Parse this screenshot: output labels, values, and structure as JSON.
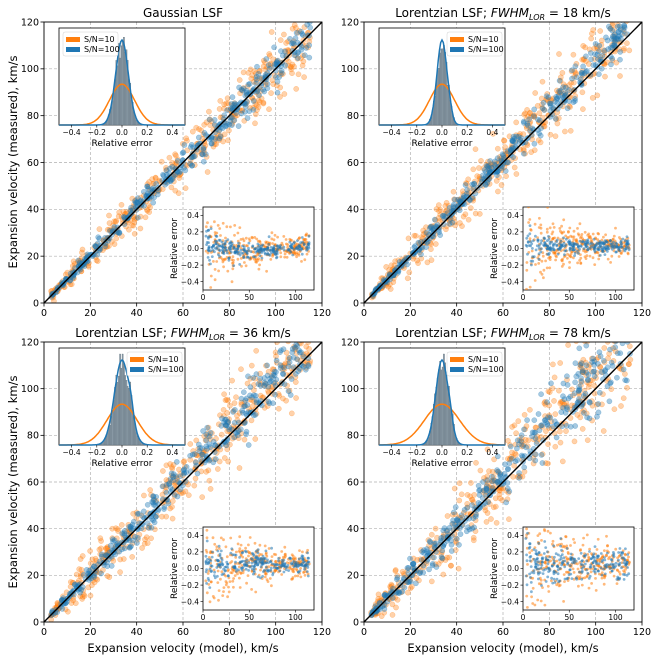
{
  "figure": {
    "xlabel": "Expansion velocity (model), km/s",
    "ylabel": "Expansion velocity (measured), km/s"
  },
  "colors": {
    "sn10": "#ff7f0e",
    "sn100": "#1f77b4",
    "identity": "#000000",
    "grid": "#b0b0b0"
  },
  "chart_data": [
    {
      "type": "scatter",
      "title": "Gaussian LSF",
      "title_sub": "",
      "xlim": [
        0,
        120
      ],
      "ylim": [
        0,
        120
      ],
      "xticks": [
        0,
        20,
        40,
        60,
        80,
        100,
        120
      ],
      "yticks": [
        0,
        20,
        40,
        60,
        80,
        100,
        120
      ],
      "grid": true,
      "identity_line": true,
      "series": [
        {
          "name": "S/N=10",
          "spread_low": 0.2,
          "spread_high": 0.06,
          "bias": 0.0
        },
        {
          "name": "S/N=100",
          "spread_low": 0.06,
          "spread_high": 0.04,
          "bias": 0.0
        }
      ],
      "hist_inset": {
        "xlabel": "Relative error",
        "xticks": [
          -0.4,
          -0.2,
          0.0,
          0.2,
          0.4
        ],
        "xlim": [
          -0.5,
          0.5
        ],
        "legend": [
          "S/N=10",
          "S/N=100"
        ],
        "legend_loc": "upper-left",
        "sigma": [
          0.1,
          0.05
        ]
      },
      "error_inset": {
        "ylabel": "Relative error",
        "xticks": [
          0,
          50,
          100
        ],
        "yticks": [
          -0.4,
          -0.2,
          0.0,
          0.2,
          0.4
        ],
        "ylim": [
          -0.5,
          0.5
        ],
        "xlim": [
          0,
          120
        ]
      }
    },
    {
      "type": "scatter",
      "title": "Lorentzian LSF; ",
      "title_sub": "FWHM_LOR = 18 km/s",
      "xlim": [
        0,
        120
      ],
      "ylim": [
        0,
        120
      ],
      "xticks": [
        0,
        20,
        40,
        60,
        80,
        100,
        120
      ],
      "yticks": [
        0,
        20,
        40,
        60,
        80,
        100,
        120
      ],
      "grid": true,
      "identity_line": true,
      "series": [
        {
          "name": "S/N=10",
          "spread_low": 0.25,
          "spread_high": 0.07,
          "bias": 0.03
        },
        {
          "name": "S/N=100",
          "spread_low": 0.06,
          "spread_high": 0.04,
          "bias": 0.03
        }
      ],
      "hist_inset": {
        "xlabel": "Relative error",
        "xticks": [
          -0.4,
          -0.2,
          0.0,
          0.2,
          0.4
        ],
        "xlim": [
          -0.5,
          0.5
        ],
        "legend": [
          "S/N=10",
          "S/N=100"
        ],
        "legend_loc": "upper-right",
        "sigma": [
          0.1,
          0.04
        ]
      },
      "error_inset": {
        "ylabel": "Relative error",
        "xticks": [
          0,
          50,
          100
        ],
        "yticks": [
          -0.4,
          -0.2,
          0.0,
          0.2,
          0.4
        ],
        "ylim": [
          -0.5,
          0.5
        ],
        "xlim": [
          0,
          120
        ]
      }
    },
    {
      "type": "scatter",
      "title": "Lorentzian LSF; ",
      "title_sub": "FWHM_LOR = 36 km/s",
      "xlim": [
        0,
        120
      ],
      "ylim": [
        0,
        120
      ],
      "xticks": [
        0,
        20,
        40,
        60,
        80,
        100,
        120
      ],
      "yticks": [
        0,
        20,
        40,
        60,
        80,
        100,
        120
      ],
      "grid": true,
      "identity_line": true,
      "series": [
        {
          "name": "S/N=10",
          "spread_low": 0.3,
          "spread_high": 0.08,
          "bias": 0.05
        },
        {
          "name": "S/N=100",
          "spread_low": 0.08,
          "spread_high": 0.06,
          "bias": 0.05
        }
      ],
      "hist_inset": {
        "xlabel": "Relative error",
        "xticks": [
          -0.4,
          -0.2,
          0.0,
          0.2,
          0.4
        ],
        "xlim": [
          -0.5,
          0.5
        ],
        "legend": [
          "S/N=10",
          "S/N=100"
        ],
        "legend_loc": "upper-right",
        "sigma": [
          0.12,
          0.06
        ]
      },
      "error_inset": {
        "ylabel": "Relative error",
        "xticks": [
          0,
          50,
          100
        ],
        "yticks": [
          -0.4,
          -0.2,
          0.0,
          0.2,
          0.4
        ],
        "ylim": [
          -0.5,
          0.5
        ],
        "xlim": [
          0,
          120
        ]
      }
    },
    {
      "type": "scatter",
      "title": "Lorentzian LSF; ",
      "title_sub": "FWHM_LOR = 78 km/s",
      "xlim": [
        0,
        120
      ],
      "ylim": [
        0,
        120
      ],
      "xticks": [
        0,
        20,
        40,
        60,
        80,
        100,
        120
      ],
      "yticks": [
        0,
        20,
        40,
        60,
        80,
        100,
        120
      ],
      "grid": true,
      "identity_line": true,
      "series": [
        {
          "name": "S/N=10",
          "spread_low": 0.35,
          "spread_high": 0.1,
          "bias": 0.06
        },
        {
          "name": "S/N=100",
          "spread_low": 0.1,
          "spread_high": 0.08,
          "bias": 0.06
        }
      ],
      "hist_inset": {
        "xlabel": "Relative error",
        "xticks": [
          -0.4,
          -0.2,
          0.0,
          0.2,
          0.4
        ],
        "xlim": [
          -0.5,
          0.5
        ],
        "legend": [
          "S/N=10",
          "S/N=100"
        ],
        "legend_loc": "upper-right",
        "sigma": [
          0.14,
          0.05
        ]
      },
      "error_inset": {
        "ylabel": "Relative error",
        "xticks": [
          0,
          50,
          100
        ],
        "yticks": [
          -0.4,
          -0.2,
          0.0,
          0.2,
          0.4
        ],
        "ylim": [
          -0.5,
          0.5
        ],
        "xlim": [
          0,
          120
        ]
      }
    }
  ]
}
